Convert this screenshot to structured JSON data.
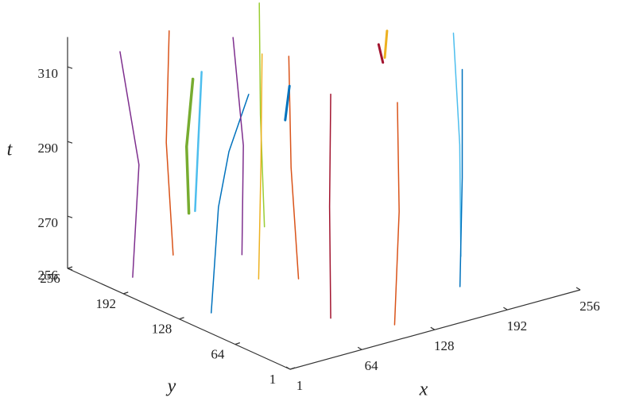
{
  "chart_data": {
    "type": "line3d",
    "xlabel": "x",
    "ylabel": "y",
    "zlabel": "t",
    "xlim": [
      1,
      256
    ],
    "ylim": [
      1,
      256
    ],
    "zlim": [
      256,
      318
    ],
    "xticks": [
      1,
      64,
      128,
      192,
      256
    ],
    "yticks": [
      1,
      64,
      128,
      192,
      256
    ],
    "zticks": [
      256,
      270,
      290,
      310
    ],
    "series": [
      {
        "color": "#7e2f8e",
        "width": 1.5,
        "x": [
          26,
          30,
          21
        ],
        "y": [
          214,
          212,
          222
        ],
        "t": [
          256,
          286,
          316
        ]
      },
      {
        "color": "#d95319",
        "width": 1.5,
        "x": [
          57,
          54,
          55
        ],
        "y": [
          208,
          212,
          210
        ],
        "t": [
          260,
          290,
          320
        ]
      },
      {
        "color": "#77ac30",
        "width": 3.5,
        "x": [
          80,
          78,
          82
        ],
        "y": [
          220,
          220,
          218
        ],
        "t": [
          268,
          286,
          304
        ]
      },
      {
        "color": "#4dbeee",
        "width": 2.5,
        "x": [
          77,
          79,
          82
        ],
        "y": [
          209,
          208,
          208
        ],
        "t": [
          270,
          288,
          307
        ]
      },
      {
        "color": "#0072bd",
        "width": 1.5,
        "x": [
          26,
          27,
          50,
          85
        ],
        "y": [
          124,
          117,
          135,
          158
        ],
        "t": [
          256,
          285,
          296,
          306
        ]
      },
      {
        "color": "#7e2f8e",
        "width": 1.5,
        "x": [
          86,
          88,
          82
        ],
        "y": [
          167,
          168,
          172
        ],
        "t": [
          262,
          291,
          320
        ]
      },
      {
        "color": "#9acd32",
        "width": 1.5,
        "x": [
          105,
          103,
          102
        ],
        "y": [
          166,
          168,
          168
        ],
        "t": [
          268,
          298,
          328
        ]
      },
      {
        "color": "#edb120",
        "width": 1.5,
        "x": [
          93,
          95,
          96
        ],
        "y": [
          157,
          157,
          157
        ],
        "t": [
          256,
          286,
          316
        ]
      },
      {
        "color": "#d95319",
        "width": 1.5,
        "x": [
          115,
          110,
          108
        ],
        "y": [
          140,
          142,
          142
        ],
        "t": [
          256,
          286,
          316
        ]
      },
      {
        "color": "#0072bd",
        "width": 3,
        "x": [
          101,
          104
        ],
        "y": [
          137,
          136
        ],
        "t": [
          300,
          309
        ]
      },
      {
        "color": "#a2142f",
        "width": 1.5,
        "x": [
          85,
          84,
          85
        ],
        "y": [
          64,
          64,
          64
        ],
        "t": [
          256,
          286,
          316
        ]
      },
      {
        "color": "#d95319",
        "width": 1.5,
        "x": [
          112,
          116,
          116
        ],
        "y": [
          26,
          26,
          28
        ],
        "t": [
          256,
          286,
          315
        ]
      },
      {
        "color": "#a2142f",
        "width": 3,
        "x": [
          170,
          167
        ],
        "y": [
          115,
          116
        ],
        "t": [
          312,
          317
        ]
      },
      {
        "color": "#edb120",
        "width": 3,
        "x": [
          177,
          179
        ],
        "y": [
          122,
          122
        ],
        "t": [
          312,
          319
        ]
      },
      {
        "color": "#4dbeee",
        "width": 1.5,
        "x": [
          204,
          203,
          199
        ],
        "y": [
          70,
          70,
          72
        ],
        "t": [
          262,
          292,
          322
        ]
      },
      {
        "color": "#0072bd",
        "width": 1.5,
        "x": [
          194,
          196,
          196
        ],
        "y": [
          58,
          58,
          58
        ],
        "t": [
          256,
          285,
          314
        ]
      }
    ]
  }
}
